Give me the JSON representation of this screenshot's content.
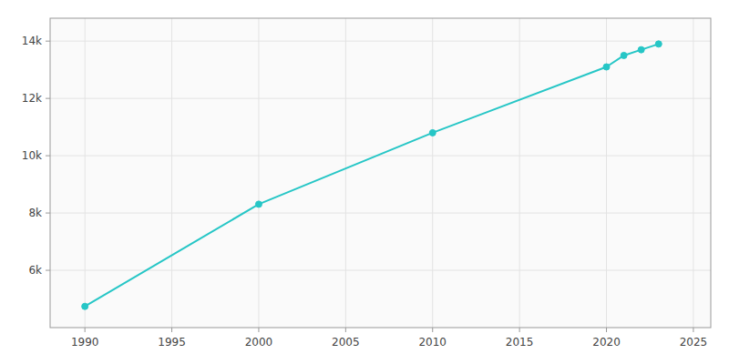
{
  "chart_data": {
    "type": "line",
    "x": [
      1990,
      2000,
      2010,
      2020,
      2021,
      2022,
      2023
    ],
    "values": [
      4741,
      8308,
      10800,
      13100,
      13500,
      13700,
      13900
    ],
    "color": "#26C6C6",
    "marker": "circle",
    "xlim": [
      1988,
      2026
    ],
    "ylim": [
      4000,
      14800
    ],
    "xticks": [
      1990,
      1995,
      2000,
      2005,
      2010,
      2015,
      2020,
      2025
    ],
    "yticks": [
      {
        "value": 6000,
        "label": "6k"
      },
      {
        "value": 8000,
        "label": "8k"
      },
      {
        "value": 10000,
        "label": "10k"
      },
      {
        "value": 12000,
        "label": "12k"
      },
      {
        "value": 14000,
        "label": "14k"
      }
    ],
    "grid": true
  }
}
